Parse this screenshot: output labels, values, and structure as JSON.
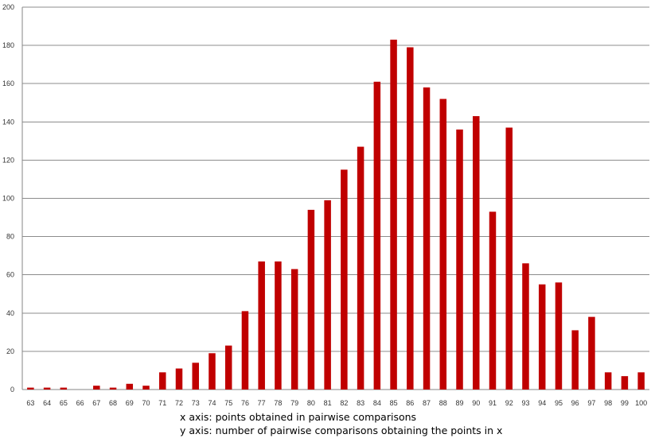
{
  "chart_data": {
    "type": "bar",
    "title": "",
    "xlabel": "x axis: points obtained in pairwise comparisons",
    "ylabel": "y axis: number of pairwise comparisons obtaining the points in x",
    "ylim": [
      0,
      200
    ],
    "y_ticks": [
      0,
      20,
      40,
      60,
      80,
      100,
      120,
      140,
      160,
      180,
      200
    ],
    "grid": true,
    "legend": "none",
    "bar_color": "#C00000",
    "categories": [
      "63",
      "64",
      "65",
      "66",
      "67",
      "68",
      "69",
      "70",
      "71",
      "72",
      "73",
      "74",
      "75",
      "76",
      "77",
      "78",
      "79",
      "80",
      "81",
      "82",
      "83",
      "84",
      "85",
      "86",
      "87",
      "88",
      "89",
      "90",
      "91",
      "92",
      "93",
      "94",
      "95",
      "96",
      "97",
      "98",
      "99",
      "100"
    ],
    "values": [
      1,
      1,
      1,
      0,
      2,
      1,
      3,
      2,
      9,
      11,
      14,
      19,
      23,
      41,
      67,
      67,
      63,
      94,
      99,
      115,
      127,
      161,
      183,
      179,
      158,
      152,
      136,
      143,
      93,
      137,
      66,
      55,
      56,
      31,
      38,
      9,
      7,
      9
    ]
  }
}
